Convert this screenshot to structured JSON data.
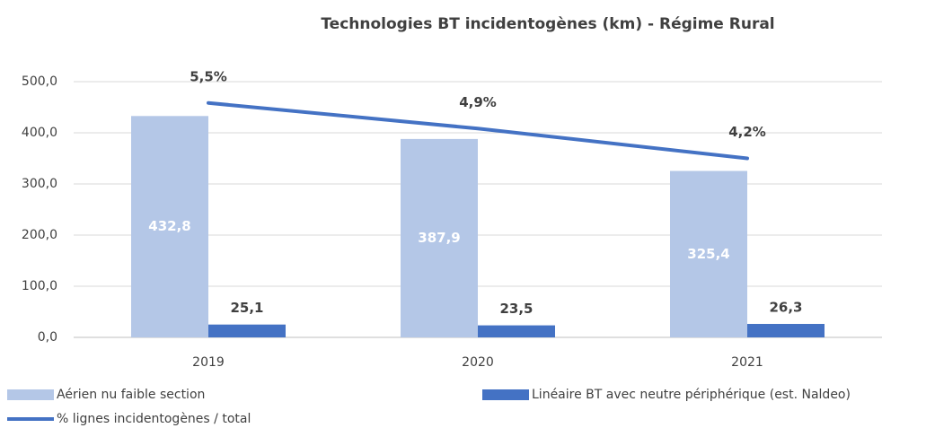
{
  "chart_data": {
    "type": "bar_line",
    "title": "Technologies BT incidentogènes (km) - Régime Rural",
    "categories": [
      "2019",
      "2020",
      "2021"
    ],
    "series": [
      {
        "name": "Aérien nu faible section",
        "type": "bar",
        "color": "#b4c7e7",
        "values": [
          432.8,
          387.9,
          325.4
        ],
        "value_labels": [
          "432,8",
          "387,9",
          "325,4"
        ],
        "label_color": "#ffffff"
      },
      {
        "name": "Linéaire BT avec neutre périphérique (est. Naldeo)",
        "type": "bar",
        "color": "#4472c4",
        "values": [
          25.1,
          23.5,
          26.3
        ],
        "value_labels": [
          "25,1",
          "23,5",
          "26,3"
        ],
        "label_color": "#404040"
      },
      {
        "name": "% lignes incidentogènes / total",
        "type": "line",
        "axis": "y2",
        "color": "#4472c4",
        "values": [
          5.5,
          4.9,
          4.2
        ],
        "value_labels": [
          "5,5%",
          "4,9%",
          "4,2%"
        ],
        "label_color": "#404040"
      }
    ],
    "ylim": [
      0,
      500
    ],
    "yticks": [
      {
        "value": 0,
        "label": "0,0"
      },
      {
        "value": 100,
        "label": "100,0"
      },
      {
        "value": 200,
        "label": "200,0"
      },
      {
        "value": 300,
        "label": "300,0"
      },
      {
        "value": 400,
        "label": "400,0"
      },
      {
        "value": 500,
        "label": "500,0"
      }
    ],
    "y2lim": [
      0,
      6
    ],
    "grid": true,
    "legend": "bottom"
  }
}
